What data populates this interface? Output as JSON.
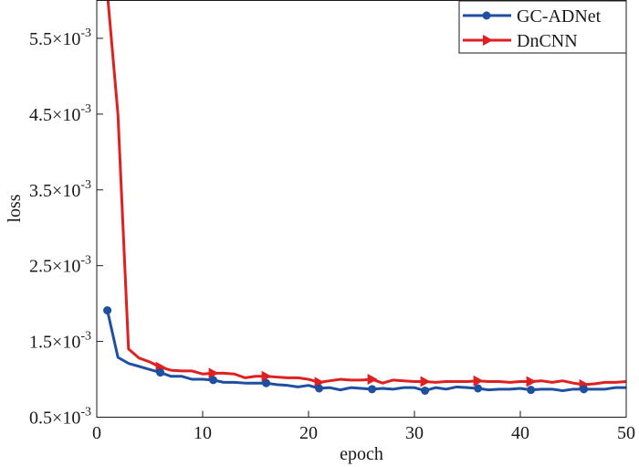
{
  "chart_data": {
    "type": "line",
    "xlabel": "epoch",
    "ylabel": "loss",
    "xlim": [
      0,
      50
    ],
    "ylim": [
      0.0005,
      0.006
    ],
    "x_ticks": [
      0,
      10,
      20,
      30,
      40,
      50
    ],
    "x_tick_labels": [
      "0",
      "10",
      "20",
      "30",
      "40",
      "50"
    ],
    "y_ticks": [
      0.0005,
      0.0015,
      0.0025,
      0.0035,
      0.0045,
      0.0055
    ],
    "y_tick_labels": [
      {
        "mantissa": "0.5",
        "exponent": "-3"
      },
      {
        "mantissa": "1.5",
        "exponent": "-3"
      },
      {
        "mantissa": "2.5",
        "exponent": "-3"
      },
      {
        "mantissa": "3.5",
        "exponent": "-3"
      },
      {
        "mantissa": "4.5",
        "exponent": "-3"
      },
      {
        "mantissa": "5.5",
        "exponent": "-3"
      }
    ],
    "tick_times": "×10",
    "grid": false,
    "legend_position": "top-right",
    "series": [
      {
        "name": "GC-ADNet",
        "color": "#1f4fa0",
        "marker": "circle",
        "marker_x": [
          1,
          6,
          11,
          16,
          21,
          26,
          31,
          36,
          41,
          46
        ],
        "x": [
          1,
          2,
          3,
          4,
          5,
          6,
          7,
          8,
          9,
          10,
          11,
          12,
          13,
          14,
          15,
          16,
          17,
          18,
          19,
          20,
          21,
          22,
          23,
          24,
          25,
          26,
          27,
          28,
          29,
          30,
          31,
          32,
          33,
          34,
          35,
          36,
          37,
          38,
          39,
          40,
          41,
          42,
          43,
          44,
          45,
          46,
          47,
          48,
          49,
          50
        ],
        "y": [
          0.00191,
          0.00129,
          0.00121,
          0.00117,
          0.00113,
          0.00109,
          0.00104,
          0.00104,
          0.001,
          0.001,
          0.00099,
          0.00096,
          0.00096,
          0.00095,
          0.00095,
          0.00095,
          0.00093,
          0.00092,
          0.0009,
          0.00092,
          0.00088,
          0.00089,
          0.00086,
          0.00089,
          0.00088,
          0.00087,
          0.00088,
          0.00087,
          0.00089,
          0.00089,
          0.00085,
          0.00089,
          0.00087,
          0.0009,
          0.00089,
          0.00088,
          0.00086,
          0.00087,
          0.00087,
          0.00088,
          0.00086,
          0.00087,
          0.00087,
          0.00085,
          0.00087,
          0.00087,
          0.00087,
          0.00087,
          0.00089,
          0.00089
        ]
      },
      {
        "name": "DnCNN",
        "color": "#e02020",
        "marker": "triangle-right",
        "marker_x": [
          6,
          11,
          16,
          21,
          26,
          31,
          36,
          41,
          46
        ],
        "x": [
          1,
          2,
          3,
          4,
          5,
          6,
          7,
          8,
          9,
          10,
          11,
          12,
          13,
          14,
          15,
          16,
          17,
          18,
          19,
          20,
          21,
          22,
          23,
          24,
          25,
          26,
          27,
          28,
          29,
          30,
          31,
          32,
          33,
          34,
          35,
          36,
          37,
          38,
          39,
          40,
          41,
          42,
          43,
          44,
          45,
          46,
          47,
          48,
          49,
          50
        ],
        "y": [
          0.0061,
          0.0045,
          0.0014,
          0.00128,
          0.00123,
          0.00116,
          0.00112,
          0.00111,
          0.00111,
          0.00107,
          0.00108,
          0.00108,
          0.00107,
          0.00102,
          0.00104,
          0.00104,
          0.00103,
          0.00102,
          0.00102,
          0.001,
          0.00096,
          0.00098,
          0.001,
          0.00099,
          0.00099,
          0.001,
          0.00095,
          0.00099,
          0.00098,
          0.00097,
          0.00097,
          0.00096,
          0.00097,
          0.00097,
          0.00097,
          0.00098,
          0.00097,
          0.00097,
          0.00096,
          0.00097,
          0.00097,
          0.00098,
          0.00096,
          0.00098,
          0.00095,
          0.00093,
          0.00094,
          0.00096,
          0.00096,
          0.00097
        ]
      }
    ]
  }
}
